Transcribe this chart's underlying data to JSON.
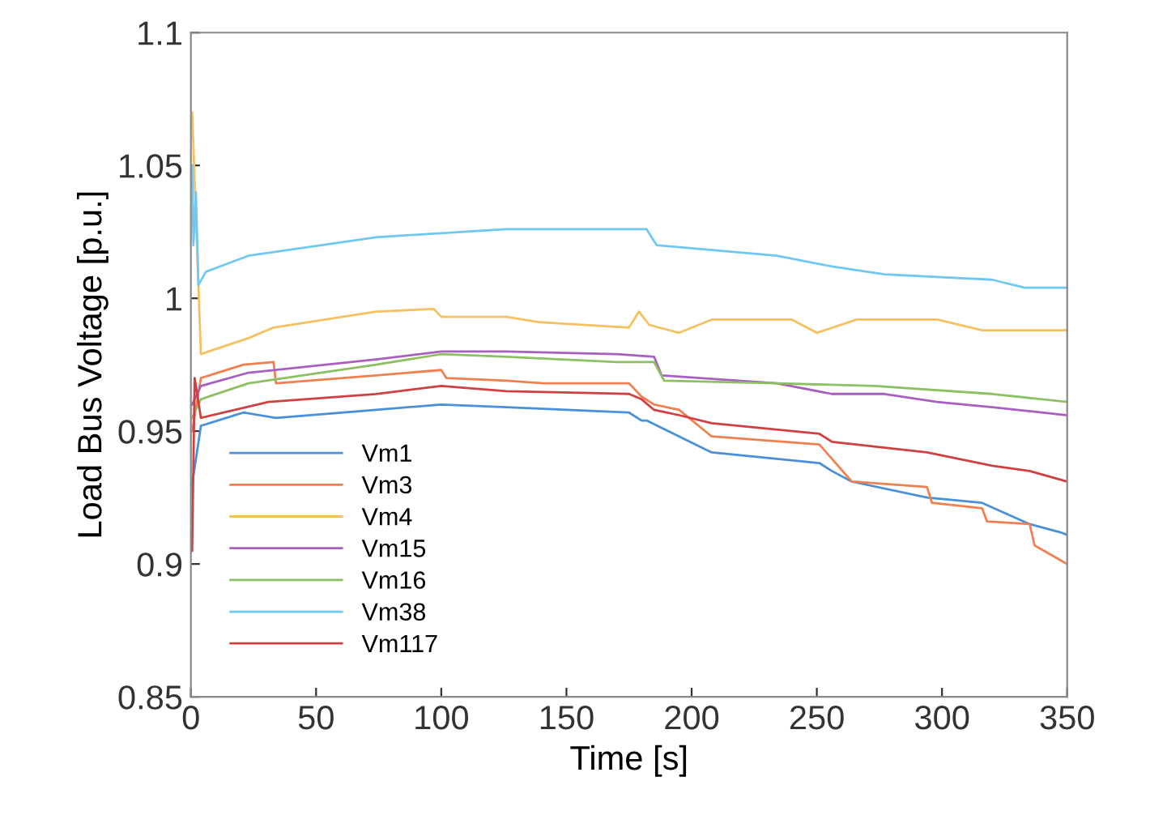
{
  "chart_data": {
    "type": "line",
    "xlabel": "Time [s]",
    "ylabel": "Load Bus Voltage [p.u.]",
    "xlim": [
      0,
      350
    ],
    "ylim": [
      0.85,
      1.1
    ],
    "xticks": [
      0,
      50,
      100,
      150,
      200,
      250,
      300,
      350
    ],
    "yticks": [
      0.85,
      0.9,
      0.95,
      1,
      1.05,
      1.1
    ],
    "grid": false,
    "legend": "bottom left",
    "series": [
      {
        "name": "Vm1",
        "color": "#4a90d9",
        "x": [
          0.5,
          4,
          21,
          34,
          74,
          100,
          126,
          175,
          180,
          182,
          195,
          208,
          251,
          256,
          264,
          294,
          316,
          335,
          347,
          350
        ],
        "values": [
          0.93,
          0.952,
          0.957,
          0.955,
          0.958,
          0.96,
          0.959,
          0.957,
          0.954,
          0.954,
          0.948,
          0.942,
          0.938,
          0.935,
          0.931,
          0.925,
          0.923,
          0.915,
          0.912,
          0.911
        ]
      },
      {
        "name": "Vm3",
        "color": "#f08050",
        "x": [
          0.5,
          4,
          21,
          33,
          34,
          74,
          100,
          102,
          126,
          141,
          175,
          180,
          185,
          195,
          208,
          251,
          264,
          294,
          296,
          316,
          318,
          335,
          337,
          350
        ],
        "values": [
          0.95,
          0.97,
          0.975,
          0.976,
          0.968,
          0.971,
          0.973,
          0.97,
          0.969,
          0.968,
          0.968,
          0.963,
          0.96,
          0.958,
          0.948,
          0.945,
          0.931,
          0.929,
          0.923,
          0.921,
          0.916,
          0.915,
          0.907,
          0.9
        ]
      },
      {
        "name": "Vm4",
        "color": "#f5c060",
        "x": [
          0.5,
          4,
          23,
          33,
          74,
          97,
          100,
          126,
          139,
          175,
          179,
          183,
          195,
          208,
          240,
          250,
          266,
          298,
          316,
          350
        ],
        "values": [
          1.07,
          0.979,
          0.985,
          0.989,
          0.995,
          0.996,
          0.993,
          0.993,
          0.991,
          0.989,
          0.995,
          0.99,
          0.987,
          0.992,
          0.992,
          0.987,
          0.992,
          0.992,
          0.988,
          0.988
        ]
      },
      {
        "name": "Vm15",
        "color": "#a860c0",
        "x": [
          0.5,
          4,
          23,
          74,
          100,
          126,
          170,
          185,
          188,
          234,
          256,
          277,
          298,
          320,
          350
        ],
        "values": [
          0.96,
          0.967,
          0.972,
          0.977,
          0.98,
          0.98,
          0.979,
          0.978,
          0.971,
          0.968,
          0.964,
          0.964,
          0.961,
          0.959,
          0.956
        ]
      },
      {
        "name": "Vm16",
        "color": "#8cc060",
        "x": [
          0.5,
          4,
          23,
          74,
          100,
          126,
          170,
          185,
          189,
          234,
          273,
          320,
          350
        ],
        "values": [
          0.955,
          0.962,
          0.968,
          0.975,
          0.979,
          0.978,
          0.976,
          0.976,
          0.969,
          0.968,
          0.967,
          0.964,
          0.961
        ]
      },
      {
        "name": "Vm38",
        "color": "#70c8f0",
        "x": [
          0.5,
          1,
          2,
          3,
          6,
          23,
          74,
          126,
          182,
          186,
          234,
          256,
          277,
          320,
          333,
          350
        ],
        "values": [
          1.05,
          1.02,
          1.04,
          1.005,
          1.01,
          1.016,
          1.023,
          1.026,
          1.026,
          1.02,
          1.016,
          1.012,
          1.009,
          1.007,
          1.004,
          1.004
        ]
      },
      {
        "name": "Vm117",
        "color": "#d04040",
        "x": [
          0.5,
          1.5,
          4,
          31,
          74,
          100,
          126,
          175,
          180,
          185,
          195,
          208,
          251,
          256,
          294,
          320,
          335,
          350
        ],
        "values": [
          0.905,
          0.97,
          0.955,
          0.961,
          0.964,
          0.967,
          0.965,
          0.964,
          0.962,
          0.958,
          0.956,
          0.953,
          0.949,
          0.946,
          0.942,
          0.937,
          0.935,
          0.931
        ]
      }
    ]
  }
}
